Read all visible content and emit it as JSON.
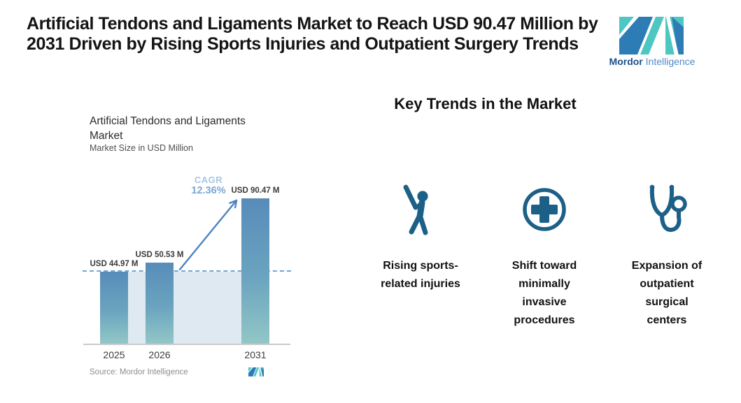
{
  "header": {
    "title": "Artificial Tendons and Ligaments Market to Reach USD 90.47 Million by 2031 Driven by Rising Sports Injuries and Outpatient Surgery Trends",
    "brand": {
      "name_bold": "Mordor",
      "name_light": "Intelligence"
    }
  },
  "chart_data": {
    "type": "bar",
    "title": "Artificial Tendons and Ligaments Market",
    "subtitle": "Market Size in USD Million",
    "categories": [
      "2025",
      "2026",
      "2031"
    ],
    "values": [
      44.97,
      50.53,
      90.47
    ],
    "bar_labels": [
      "USD 44.97 M",
      "USD 50.53 M",
      "USD 90.47 M"
    ],
    "ylim": [
      0,
      100
    ],
    "grid": false,
    "legend": "none",
    "annotations": {
      "cagr_label": "CAGR",
      "cagr_value": "12.36%",
      "baseline_dashed_at": 44.97
    },
    "source": "Source: Mordor Intelligence"
  },
  "key_trends": {
    "heading": "Key Trends in the Market",
    "items": [
      {
        "icon": "baseball-batter-icon",
        "label": "Rising sports-related injuries"
      },
      {
        "icon": "medical-cross-icon",
        "label": "Shift toward minimally invasive procedures"
      },
      {
        "icon": "stethoscope-icon",
        "label": "Expansion of outpatient surgical centers"
      }
    ]
  },
  "colors": {
    "icon_blue": "#1d6087",
    "bar_top": "#578cba",
    "bar_bottom": "#92c7c6",
    "band": "#dfe9f1",
    "dashed": "#74a6d2",
    "arrow": "#4c84bf",
    "cagr_light": "#a6c6e6",
    "cagr_value": "#7aa8d4",
    "axis": "#c9c9c9",
    "text_dark": "#141414",
    "text_gray": "#8d8d8d",
    "logo_blue": "#2d7cb5",
    "logo_teal": "#4ec6c2",
    "brand_dark": "#1d4e89",
    "brand_light": "#5089c7"
  }
}
